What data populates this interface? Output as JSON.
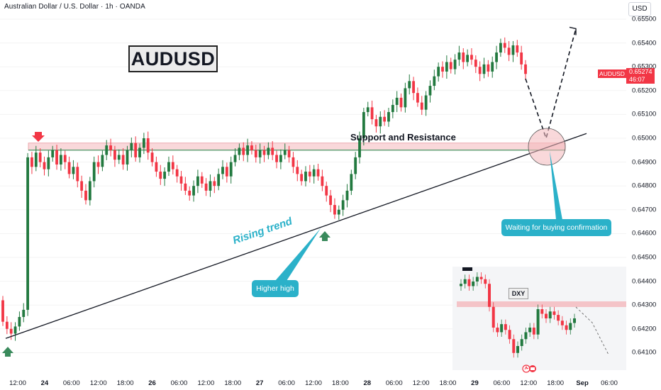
{
  "header": {
    "symbol_line": "Australian Dollar / U.S. Dollar · 1h · OANDA",
    "currency": "USD"
  },
  "title_box": "AUDUSD",
  "price_tag": {
    "symbol": "AUDUSD",
    "price": "0.65274",
    "countdown": "46:07"
  },
  "annotations": {
    "support_resistance": "Support and Resistance",
    "rising_trend": "Rising trend",
    "higher_high": "Higher high",
    "waiting": "Waiting for buying confirmation",
    "dxy": "DXY"
  },
  "colors": {
    "bull": "#22793f",
    "bear": "#f23645",
    "accent": "#2bb1c9",
    "zone": "#f4b8bc"
  },
  "chart_data": {
    "type": "candlestick",
    "symbol": "AUDUSD",
    "timeframe": "1h",
    "ylim": [
      0.6405,
      0.6555
    ],
    "price_ticks": [
      "0.65500",
      "0.65400",
      "0.65300",
      "0.65200",
      "0.65100",
      "0.65000",
      "0.64900",
      "0.64800",
      "0.64700",
      "0.64600",
      "0.64500",
      "0.64400",
      "0.64300",
      "0.64200",
      "0.64100"
    ],
    "time_ticks": [
      "12:00",
      "24",
      "06:00",
      "12:00",
      "18:00",
      "26",
      "06:00",
      "12:00",
      "18:00",
      "27",
      "06:00",
      "12:00",
      "18:00",
      "28",
      "06:00",
      "12:00",
      "18:00",
      "29",
      "06:00",
      "12:00",
      "18:00",
      "Sep",
      "06:00"
    ],
    "zone": [
      0.6495,
      0.6498
    ],
    "trendline": {
      "from": 0.6416,
      "to": 0.6502
    },
    "projection": [
      0.6525,
      0.65,
      0.6546
    ],
    "closes": [
      0.6423,
      0.642,
      0.6418,
      0.6421,
      0.6425,
      0.6428,
      0.6492,
      0.6488,
      0.6494,
      0.649,
      0.6487,
      0.6492,
      0.6495,
      0.6489,
      0.6493,
      0.649,
      0.6485,
      0.6488,
      0.6482,
      0.6478,
      0.6474,
      0.6482,
      0.649,
      0.6488,
      0.6493,
      0.6497,
      0.6495,
      0.6491,
      0.6493,
      0.6489,
      0.6495,
      0.6498,
      0.6492,
      0.6496,
      0.65,
      0.6494,
      0.649,
      0.6486,
      0.6483,
      0.6486,
      0.649,
      0.6487,
      0.6484,
      0.6481,
      0.6478,
      0.6476,
      0.648,
      0.6484,
      0.6481,
      0.6478,
      0.6482,
      0.648,
      0.6485,
      0.6488,
      0.6484,
      0.649,
      0.6493,
      0.6496,
      0.6493,
      0.6497,
      0.6495,
      0.6492,
      0.6495,
      0.6493,
      0.6496,
      0.6493,
      0.649,
      0.6493,
      0.6495,
      0.6492,
      0.6488,
      0.6485,
      0.6482,
      0.6486,
      0.6484,
      0.6487,
      0.6484,
      0.648,
      0.6476,
      0.6472,
      0.6468,
      0.647,
      0.6474,
      0.6478,
      0.6485,
      0.6492,
      0.65,
      0.6511,
      0.6513,
      0.6508,
      0.6505,
      0.6509,
      0.6507,
      0.6511,
      0.6514,
      0.6517,
      0.6513,
      0.6521,
      0.6524,
      0.6519,
      0.6515,
      0.6512,
      0.6518,
      0.6522,
      0.6526,
      0.653,
      0.6528,
      0.6532,
      0.6529,
      0.6533,
      0.6536,
      0.6532,
      0.6535,
      0.6533,
      0.653,
      0.6527,
      0.6531,
      0.6528,
      0.6532,
      0.6536,
      0.654,
      0.6538,
      0.6535,
      0.6539,
      0.6536,
      0.6531,
      0.6527
    ],
    "dxy": {
      "label": "DXY",
      "closes": [
        101.6,
        101.64,
        101.58,
        101.62,
        101.66,
        101.64,
        101.6,
        101.4,
        101.22,
        101.18,
        101.25,
        101.2,
        101.12,
        101.0,
        101.06,
        101.12,
        101.18,
        101.22,
        101.16,
        101.38,
        101.34,
        101.3,
        101.36,
        101.33,
        101.28,
        101.24,
        101.2,
        101.26,
        101.3
      ]
    }
  }
}
